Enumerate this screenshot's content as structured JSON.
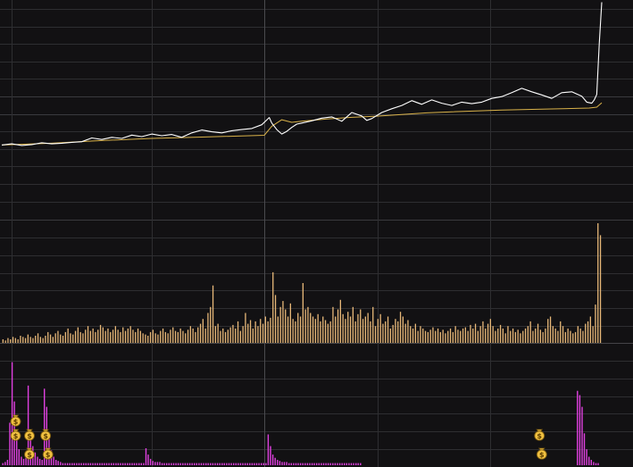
{
  "colors": {
    "background": "#121113",
    "grid": "#2e2e31",
    "grid_strong": "#3a3a3e",
    "price_line": "#ffffff",
    "avg_line": "#d9b24a",
    "volume_bar": "#e8b878",
    "indicator_bar": "#e040e0",
    "marker_fill": "#f0c040",
    "marker_stroke": "#7a5a10"
  },
  "chart_data": [
    {
      "type": "line",
      "panel": "intraday-price",
      "title": "",
      "xlabel": "",
      "ylabel": "",
      "grid": true,
      "x_range": [
        0,
        240
      ],
      "ylim": [
        0,
        100
      ],
      "series": [
        {
          "role": "price",
          "color": "#ffffff",
          "points": [
            [
              0,
              34
            ],
            [
              4,
              34.5
            ],
            [
              8,
              33.8
            ],
            [
              12,
              34.2
            ],
            [
              16,
              35
            ],
            [
              20,
              34.5
            ],
            [
              24,
              34.8
            ],
            [
              28,
              35.2
            ],
            [
              32,
              35.5
            ],
            [
              36,
              37.2
            ],
            [
              40,
              36.5
            ],
            [
              44,
              37.5
            ],
            [
              48,
              37
            ],
            [
              52,
              38.5
            ],
            [
              56,
              37.8
            ],
            [
              60,
              39
            ],
            [
              64,
              38.2
            ],
            [
              68,
              38.8
            ],
            [
              72,
              37.5
            ],
            [
              76,
              39.5
            ],
            [
              80,
              40.8
            ],
            [
              84,
              40
            ],
            [
              88,
              39.5
            ],
            [
              92,
              40.5
            ],
            [
              96,
              41
            ],
            [
              100,
              41.5
            ],
            [
              104,
              43.2
            ],
            [
              107,
              46.5
            ],
            [
              108,
              44
            ],
            [
              110,
              41
            ],
            [
              112,
              39
            ],
            [
              114,
              40.2
            ],
            [
              116,
              42
            ],
            [
              118,
              43.5
            ],
            [
              120,
              44
            ],
            [
              124,
              45
            ],
            [
              128,
              46.2
            ],
            [
              132,
              46.8
            ],
            [
              136,
              44.8
            ],
            [
              140,
              48.8
            ],
            [
              144,
              47.2
            ],
            [
              146,
              45.2
            ],
            [
              148,
              46
            ],
            [
              152,
              48.8
            ],
            [
              156,
              50.5
            ],
            [
              160,
              52
            ],
            [
              164,
              54.2
            ],
            [
              168,
              52.5
            ],
            [
              172,
              54.5
            ],
            [
              176,
              53
            ],
            [
              180,
              52
            ],
            [
              184,
              53.5
            ],
            [
              188,
              52.8
            ],
            [
              192,
              53.5
            ],
            [
              196,
              55.2
            ],
            [
              200,
              56
            ],
            [
              204,
              57.8
            ],
            [
              208,
              59.8
            ],
            [
              212,
              58.2
            ],
            [
              216,
              56.8
            ],
            [
              220,
              55.2
            ],
            [
              224,
              57.8
            ],
            [
              228,
              58.2
            ],
            [
              232,
              56.2
            ],
            [
              234,
              53.5
            ],
            [
              236,
              53
            ],
            [
              237,
              54.5
            ],
            [
              238,
              57
            ],
            [
              239,
              80
            ],
            [
              240,
              99
            ]
          ]
        },
        {
          "role": "average",
          "color": "#d9b24a",
          "points": [
            [
              0,
              34
            ],
            [
              20,
              34.8
            ],
            [
              40,
              36
            ],
            [
              60,
              37
            ],
            [
              80,
              37.6
            ],
            [
              105,
              38.4
            ],
            [
              108,
              42.5
            ],
            [
              112,
              45.5
            ],
            [
              116,
              44.3
            ],
            [
              120,
              44.8
            ],
            [
              130,
              45.8
            ],
            [
              140,
              46.6
            ],
            [
              150,
              47.1
            ],
            [
              160,
              47.9
            ],
            [
              170,
              48.6
            ],
            [
              180,
              49.1
            ],
            [
              200,
              49.9
            ],
            [
              220,
              50.4
            ],
            [
              235,
              50.8
            ],
            [
              238,
              51.2
            ],
            [
              240,
              53.2
            ]
          ]
        }
      ]
    },
    {
      "type": "bar",
      "panel": "volume",
      "title": "",
      "grid": true,
      "x_range": [
        0,
        240
      ],
      "ylim": [
        0,
        100
      ],
      "values": [
        3,
        2,
        4,
        3,
        5,
        4,
        3,
        6,
        5,
        4,
        7,
        5,
        4,
        6,
        8,
        5,
        4,
        6,
        9,
        7,
        5,
        8,
        10,
        7,
        6,
        9,
        12,
        8,
        7,
        10,
        13,
        9,
        8,
        11,
        14,
        10,
        12,
        9,
        11,
        15,
        13,
        10,
        12,
        9,
        11,
        14,
        11,
        9,
        13,
        10,
        12,
        14,
        11,
        9,
        12,
        10,
        8,
        7,
        6,
        9,
        11,
        8,
        7,
        10,
        12,
        9,
        8,
        11,
        13,
        10,
        9,
        12,
        10,
        8,
        11,
        14,
        12,
        9,
        13,
        16,
        20,
        12,
        25,
        30,
        48,
        14,
        16,
        10,
        12,
        9,
        11,
        13,
        15,
        12,
        18,
        10,
        14,
        25,
        16,
        19,
        12,
        18,
        14,
        20,
        16,
        22,
        18,
        21,
        59,
        40,
        22,
        30,
        35,
        28,
        22,
        33,
        20,
        18,
        25,
        22,
        50,
        28,
        30,
        25,
        22,
        20,
        24,
        18,
        22,
        19,
        16,
        18,
        30,
        22,
        28,
        36,
        24,
        20,
        26,
        22,
        30,
        18,
        24,
        28,
        20,
        22,
        25,
        18,
        30,
        14,
        20,
        24,
        16,
        18,
        22,
        12,
        15,
        20,
        18,
        26,
        22,
        16,
        19,
        14,
        12,
        16,
        10,
        14,
        12,
        10,
        9,
        11,
        13,
        10,
        12,
        9,
        11,
        8,
        10,
        12,
        9,
        14,
        11,
        10,
        12,
        13,
        10,
        15,
        12,
        16,
        10,
        14,
        18,
        12,
        16,
        20,
        14,
        10,
        12,
        15,
        12,
        8,
        14,
        10,
        12,
        9,
        11,
        8,
        10,
        12,
        14,
        18,
        10,
        12,
        16,
        11,
        9,
        12,
        20,
        22,
        14,
        12,
        10,
        18,
        14,
        9,
        12,
        10,
        8,
        9,
        14,
        12,
        10,
        16,
        18,
        22,
        14,
        32,
        100,
        90
      ]
    },
    {
      "type": "bar",
      "panel": "indicator",
      "title": "",
      "grid": true,
      "x_range": [
        0,
        240
      ],
      "ylim": [
        0,
        100
      ],
      "values": [
        2,
        3,
        5,
        40,
        97,
        60,
        25,
        15,
        8,
        6,
        10,
        75,
        30,
        18,
        12,
        8,
        6,
        5,
        72,
        55,
        30,
        14,
        8,
        5,
        4,
        3,
        2,
        2,
        2,
        2,
        2,
        2,
        2,
        2,
        2,
        2,
        2,
        2,
        2,
        2,
        2,
        2,
        2,
        2,
        2,
        2,
        2,
        2,
        2,
        2,
        2,
        2,
        2,
        2,
        2,
        2,
        2,
        2,
        2,
        2,
        2,
        2,
        16,
        10,
        6,
        4,
        3,
        3,
        3,
        2,
        2,
        2,
        2,
        2,
        2,
        2,
        2,
        2,
        2,
        2,
        2,
        2,
        2,
        2,
        2,
        2,
        2,
        2,
        2,
        2,
        2,
        2,
        2,
        2,
        2,
        2,
        2,
        2,
        2,
        2,
        2,
        2,
        2,
        2,
        2,
        2,
        2,
        2,
        2,
        2,
        2,
        2,
        2,
        2,
        2,
        29,
        18,
        10,
        7,
        5,
        4,
        3,
        3,
        3,
        2,
        2,
        2,
        2,
        2,
        2,
        2,
        2,
        2,
        2,
        2,
        2,
        2,
        2,
        2,
        2,
        2,
        2,
        2,
        2,
        2,
        2,
        2,
        2,
        2,
        2,
        2,
        2,
        2,
        2,
        2,
        2,
        0,
        0,
        0,
        0,
        0,
        0,
        0,
        0,
        0,
        0,
        0,
        0,
        0,
        0,
        0,
        0,
        0,
        0,
        0,
        0,
        0,
        0,
        0,
        0,
        0,
        0,
        0,
        0,
        0,
        0,
        0,
        0,
        0,
        0,
        0,
        0,
        0,
        0,
        0,
        0,
        0,
        0,
        0,
        0,
        0,
        0,
        0,
        0,
        0,
        0,
        0,
        0,
        0,
        0,
        0,
        0,
        0,
        0,
        0,
        0,
        0,
        0,
        0,
        0,
        0,
        0,
        0,
        0,
        0,
        0,
        0,
        0,
        0,
        0,
        0,
        0,
        0,
        0,
        0,
        0,
        0,
        0,
        0,
        0,
        0,
        0,
        0,
        0,
        0,
        0,
        0,
        0,
        0,
        70,
        66,
        55,
        30,
        15,
        8,
        5,
        3,
        2,
        2,
        0
      ],
      "markers": [
        {
          "x": 6,
          "level": 1,
          "icon": "money-bag-icon"
        },
        {
          "x": 6,
          "level": 2,
          "icon": "money-bag-icon"
        },
        {
          "x": 12,
          "level": 2,
          "icon": "money-bag-icon"
        },
        {
          "x": 12,
          "level": 3,
          "icon": "money-bag-icon"
        },
        {
          "x": 19,
          "level": 2,
          "icon": "money-bag-icon"
        },
        {
          "x": 20,
          "level": 3,
          "icon": "money-bag-icon"
        },
        {
          "x": 233,
          "level": 2,
          "icon": "money-bag-icon"
        },
        {
          "x": 234,
          "level": 3,
          "icon": "money-bag-icon"
        }
      ]
    }
  ]
}
